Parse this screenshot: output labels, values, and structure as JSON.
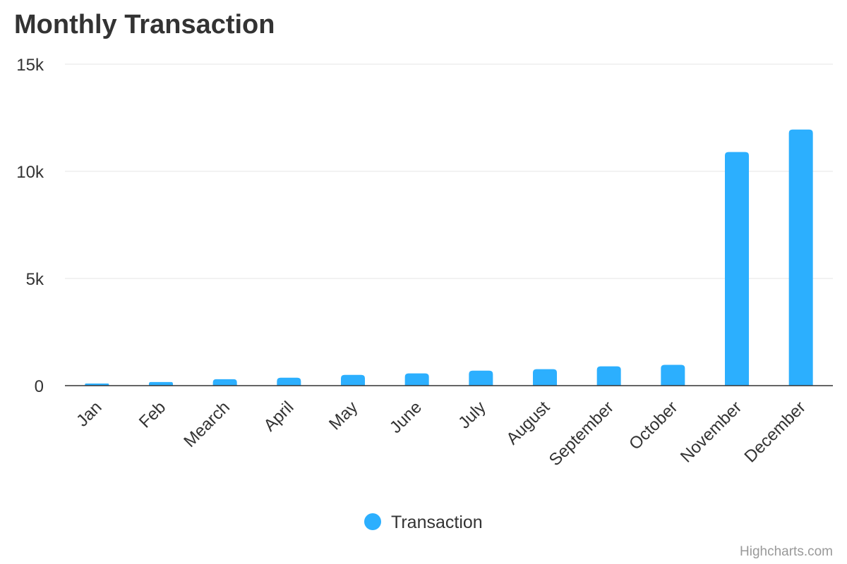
{
  "chart_data": {
    "type": "bar",
    "title": "Monthly Transaction",
    "categories": [
      "Jan",
      "Feb",
      "Mearch",
      "April",
      "May",
      "June",
      "July",
      "August",
      "September",
      "October",
      "November",
      "December"
    ],
    "series": [
      {
        "name": "Transaction",
        "color": "#2caffe",
        "values": [
          100,
          170,
          300,
          370,
          500,
          570,
          700,
          770,
          900,
          970,
          10900,
          11950
        ]
      }
    ],
    "yticks": [
      {
        "value": 0,
        "label": "0"
      },
      {
        "value": 5000,
        "label": "5k"
      },
      {
        "value": 10000,
        "label": "10k"
      },
      {
        "value": 15000,
        "label": "15k"
      }
    ],
    "ylim": [
      0,
      15000
    ],
    "grid": true,
    "legend": "bottom-center"
  },
  "credits": "Highcharts.com"
}
